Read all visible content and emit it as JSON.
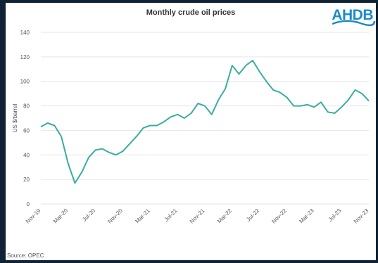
{
  "chart_data": {
    "type": "line",
    "title": "Monthly crude oil prices",
    "ylabel": "US $/barrel",
    "xlabel": "",
    "ylim": [
      0,
      140
    ],
    "yticks": [
      0,
      20,
      40,
      60,
      80,
      100,
      120,
      140
    ],
    "grid": true,
    "legend": "none",
    "line_color": "#3aada0",
    "x_tick_labels": [
      "Nov-19",
      "Mar-20",
      "Jul-20",
      "Nov-20",
      "Mar-21",
      "Jul-21",
      "Nov-21",
      "Mar-22",
      "Jul-22",
      "Nov-22",
      "Mar-23",
      "Jul-23",
      "Nov-23"
    ],
    "series": [
      {
        "x": [
          "Nov-19",
          "Dec-19",
          "Jan-20",
          "Feb-20",
          "Mar-20",
          "Apr-20",
          "May-20",
          "Jun-20",
          "Jul-20",
          "Aug-20",
          "Sep-20",
          "Oct-20",
          "Nov-20",
          "Dec-20",
          "Jan-21",
          "Feb-21",
          "Mar-21",
          "Apr-21",
          "May-21",
          "Jun-21",
          "Jul-21",
          "Aug-21",
          "Sep-21",
          "Oct-21",
          "Nov-21",
          "Dec-21",
          "Jan-22",
          "Feb-22",
          "Mar-22",
          "Apr-22",
          "May-22",
          "Jun-22",
          "Jul-22",
          "Aug-22",
          "Sep-22",
          "Oct-22",
          "Nov-22",
          "Dec-22",
          "Jan-23",
          "Feb-23",
          "Mar-23",
          "Apr-23",
          "May-23",
          "Jun-23",
          "Jul-23",
          "Aug-23",
          "Sep-23",
          "Oct-23",
          "Nov-23"
        ],
        "values": [
          63,
          66,
          64,
          55,
          33,
          17,
          26,
          38,
          44,
          45,
          42,
          40,
          43,
          49,
          55,
          62,
          64,
          64,
          67,
          71,
          73,
          70,
          74,
          82,
          80,
          73,
          85,
          94,
          113,
          106,
          113,
          117,
          108,
          100,
          93,
          91,
          87,
          80,
          80,
          81,
          79,
          83,
          75,
          74,
          79,
          85,
          93,
          90,
          84
        ]
      }
    ]
  },
  "logo": {
    "text": "AHDB"
  },
  "source": "Source: OPEC",
  "colors": {
    "line": "#3aada0",
    "logo": "#1b8ac9",
    "background": "#0f2236"
  }
}
